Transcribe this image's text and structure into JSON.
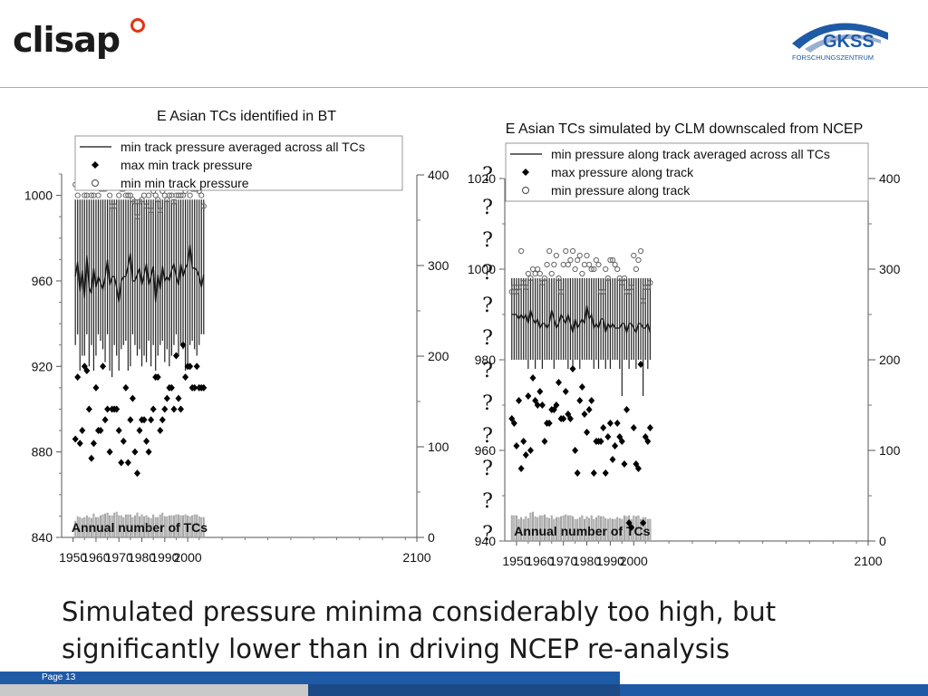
{
  "header": {
    "logo_left_text": "clisap",
    "logo_right_text": "GKSS",
    "logo_right_subtext": "FORSCHUNGSZENTRUM"
  },
  "caption": {
    "line1": "Simulated pressure minima considerably too high, but",
    "line2": "significantly lower than in driving NCEP re-analysis"
  },
  "footer": {
    "page_label": "Page 13"
  },
  "chart_data": [
    {
      "type": "box_scatter_bar",
      "title": "E Asian TCs identified in BT",
      "xlabel": "",
      "ylabel": "",
      "y2label": "",
      "xlim": [
        1945,
        2100
      ],
      "ylim": [
        840,
        1010
      ],
      "y2lim": [
        0,
        400
      ],
      "x_ticks": [
        1950,
        1960,
        1970,
        1980,
        1990,
        2000,
        2100
      ],
      "y_ticks": [
        840,
        880,
        920,
        960,
        1000
      ],
      "y2_ticks": [
        0,
        100,
        200,
        300,
        400
      ],
      "legend": [
        {
          "label": "min track pressure averaged across all TCs",
          "marker": "line"
        },
        {
          "label": "max min track pressure",
          "marker": "diamond"
        },
        {
          "label": "min min track pressure",
          "marker": "circle"
        }
      ],
      "bar_label": "Annual number of TCs",
      "years": [
        1951,
        1952,
        1953,
        1954,
        1955,
        1956,
        1957,
        1958,
        1959,
        1960,
        1961,
        1962,
        1963,
        1964,
        1965,
        1966,
        1967,
        1968,
        1969,
        1970,
        1971,
        1972,
        1973,
        1974,
        1975,
        1976,
        1977,
        1978,
        1979,
        1980,
        1981,
        1982,
        1983,
        1984,
        1985,
        1986,
        1987,
        1988,
        1989,
        1990,
        1991,
        1992,
        1993,
        1994,
        1995,
        1996,
        1997,
        1998,
        1999,
        2000,
        2001,
        2002,
        2003,
        2004,
        2005,
        2006,
        2007
      ],
      "avg": [
        962,
        969,
        955,
        965,
        952,
        972,
        957,
        954,
        966,
        957,
        962,
        959,
        956,
        962,
        970,
        958,
        962,
        962,
        957,
        950,
        960,
        962,
        962,
        967,
        973,
        960,
        960,
        963,
        966,
        958,
        963,
        968,
        958,
        962,
        967,
        950,
        963,
        956,
        967,
        960,
        962,
        960,
        965,
        968,
        962,
        958,
        968,
        962,
        966,
        968,
        977,
        966,
        966,
        965,
        962,
        957,
        963
      ],
      "whisker_max": [
        998,
        998,
        998,
        998,
        998,
        998,
        998,
        998,
        998,
        998,
        998,
        998,
        998,
        998,
        998,
        998,
        998,
        998,
        998,
        998,
        998,
        998,
        998,
        998,
        998,
        998,
        998,
        998,
        998,
        998,
        998,
        998,
        998,
        998,
        998,
        998,
        998,
        998,
        998,
        998,
        998,
        998,
        998,
        998,
        998,
        998,
        998,
        998,
        998,
        998,
        998,
        998,
        998,
        998,
        998,
        998,
        998
      ],
      "whisker_min": [
        930,
        935,
        918,
        925,
        925,
        935,
        920,
        930,
        918,
        925,
        935,
        932,
        928,
        922,
        935,
        918,
        915,
        930,
        925,
        918,
        928,
        930,
        932,
        918,
        920,
        935,
        930,
        925,
        928,
        920,
        925,
        922,
        932,
        920,
        930,
        918,
        925,
        930,
        932,
        922,
        928,
        920,
        925,
        930,
        935,
        925,
        930,
        928,
        918,
        920,
        930,
        932,
        928,
        925,
        930,
        935,
        935
      ],
      "max_points": [
        886,
        915,
        884,
        890,
        920,
        918,
        900,
        877,
        884,
        910,
        890,
        890,
        920,
        895,
        900,
        880,
        900,
        900,
        900,
        890,
        875,
        885,
        910,
        875,
        895,
        905,
        880,
        870,
        890,
        895,
        895,
        885,
        880,
        895,
        900,
        915,
        915,
        890,
        895,
        900,
        905,
        910,
        910,
        900,
        925,
        905,
        900,
        930,
        915,
        920,
        920,
        910,
        910,
        920,
        910,
        910,
        910
      ],
      "min_points": [
        1005,
        1000,
        1005,
        1005,
        1000,
        1000,
        1005,
        1000,
        1000,
        1008,
        1000,
        1003,
        1003,
        1003,
        1005,
        1000,
        995,
        995,
        1005,
        1000,
        1003,
        1003,
        1000,
        1000,
        1000,
        998,
        997,
        990,
        997,
        998,
        1000,
        995,
        1000,
        993,
        1002,
        1000,
        998,
        993,
        1002,
        1000,
        998,
        1000,
        1000,
        997,
        1000,
        1000,
        1000,
        1000,
        1002,
        1006,
        1000,
        1003,
        1003,
        1003,
        1002,
        1000,
        995
      ],
      "annual_counts": [
        18,
        23,
        22,
        21,
        22,
        24,
        22,
        21,
        26,
        22,
        22,
        24,
        25,
        26,
        27,
        24,
        24,
        27,
        28,
        24,
        24,
        22,
        25,
        25,
        25,
        22,
        24,
        27,
        23,
        25,
        23,
        24,
        22,
        21,
        25,
        22,
        22,
        25,
        27,
        23,
        23,
        24,
        24,
        24,
        25,
        25,
        24,
        24,
        25,
        24,
        23,
        24,
        25,
        25,
        23,
        22,
        22
      ]
    },
    {
      "type": "box_scatter_bar",
      "title": "E Asian TCs simulated by CLM downscaled from NCEP",
      "xlabel": "",
      "ylabel": "",
      "y2label": "",
      "xlim": [
        1945,
        2100
      ],
      "ylim": [
        940,
        1020
      ],
      "y2lim": [
        0,
        400
      ],
      "x_ticks": [
        1950,
        1960,
        1970,
        1980,
        1990,
        2000,
        2100
      ],
      "y_ticks": [
        940,
        960,
        980,
        1000,
        1020
      ],
      "y2_ticks": [
        0,
        100,
        200,
        300,
        400
      ],
      "legend": [
        {
          "label": "min pressure along track averaged across all TCs",
          "marker": "line"
        },
        {
          "label": "max pressure along track",
          "marker": "diamond"
        },
        {
          "label": "min pressure along track",
          "marker": "circle"
        }
      ],
      "bar_label": "Annual number of TCs",
      "overlay_marks": [
        "?",
        "?",
        "?",
        "?",
        "?",
        "?",
        "?",
        "?",
        "?",
        "?",
        "?",
        "?"
      ],
      "years": [
        1948,
        1949,
        1950,
        1951,
        1952,
        1953,
        1954,
        1955,
        1956,
        1957,
        1958,
        1959,
        1960,
        1961,
        1962,
        1963,
        1964,
        1965,
        1966,
        1967,
        1968,
        1969,
        1970,
        1971,
        1972,
        1973,
        1974,
        1975,
        1976,
        1977,
        1978,
        1979,
        1980,
        1981,
        1982,
        1983,
        1984,
        1985,
        1986,
        1987,
        1988,
        1989,
        1990,
        1991,
        1992,
        1993,
        1994,
        1995,
        1996,
        1997,
        1998,
        1999,
        2000,
        2001,
        2002,
        2003,
        2004,
        2005,
        2006,
        2007
      ],
      "avg": [
        990,
        990,
        990,
        989,
        990,
        989,
        990,
        988,
        991,
        989,
        988,
        989,
        987,
        988,
        988,
        987,
        988,
        991,
        989,
        987,
        988,
        990,
        989,
        988,
        990,
        988,
        986,
        989,
        987,
        988,
        989,
        988,
        992,
        989,
        990,
        987,
        988,
        987,
        989,
        989,
        986,
        988,
        987,
        988,
        987,
        987,
        987,
        988,
        988,
        986,
        988,
        988,
        987,
        986,
        988,
        988,
        987,
        987,
        988,
        986
      ],
      "whisker_max": [
        998,
        998,
        998,
        998,
        998,
        998,
        998,
        998,
        998,
        998,
        998,
        998,
        998,
        998,
        998,
        998,
        998,
        998,
        998,
        998,
        998,
        998,
        998,
        998,
        998,
        998,
        998,
        998,
        998,
        998,
        998,
        998,
        998,
        998,
        998,
        998,
        998,
        998,
        998,
        998,
        998,
        998,
        998,
        998,
        998,
        998,
        998,
        998,
        998,
        998,
        998,
        998,
        998,
        998,
        998,
        998,
        998,
        998,
        998,
        998
      ],
      "whisker_min": [
        980,
        980,
        980,
        980,
        980,
        980,
        980,
        978,
        980,
        980,
        978,
        980,
        980,
        978,
        980,
        980,
        980,
        980,
        978,
        980,
        980,
        980,
        980,
        980,
        978,
        980,
        978,
        980,
        980,
        978,
        980,
        980,
        980,
        980,
        980,
        978,
        980,
        978,
        980,
        980,
        978,
        980,
        978,
        980,
        980,
        980,
        978,
        972,
        980,
        980,
        978,
        980,
        980,
        978,
        980,
        980,
        972,
        980,
        978,
        980
      ],
      "max_points": [
        967,
        966,
        961,
        971,
        956,
        962,
        959,
        972,
        960,
        976,
        971,
        970,
        973,
        970,
        962,
        966,
        966,
        969,
        969,
        970,
        975,
        967,
        967,
        973,
        968,
        967,
        978,
        960,
        955,
        971,
        974,
        968,
        964,
        969,
        971,
        955,
        962,
        962,
        962,
        965,
        955,
        963,
        966,
        958,
        961,
        966,
        963,
        962,
        957,
        969,
        944,
        943,
        965,
        957,
        956,
        979,
        944,
        963,
        962,
        965
      ],
      "min_points": [
        995,
        996,
        995,
        996,
        1004,
        997,
        996,
        999,
        998,
        1000,
        999,
        1000,
        999,
        997,
        998,
        1001,
        1004,
        999,
        1001,
        1003,
        998,
        995,
        1001,
        1004,
        1001,
        1002,
        1004,
        1000,
        1002,
        1003,
        999,
        1001,
        1003,
        1001,
        1000,
        1000,
        1002,
        1001,
        995,
        995,
        1000,
        998,
        1002,
        1002,
        1001,
        1000,
        998,
        997,
        998,
        995,
        995,
        996,
        1003,
        1000,
        1002,
        1004,
        993,
        996,
        996,
        997
      ],
      "annual_counts": [
        28,
        28,
        28,
        24,
        26,
        24,
        27,
        25,
        31,
        32,
        27,
        26,
        28,
        28,
        29,
        26,
        25,
        28,
        24,
        26,
        26,
        27,
        28,
        29,
        28,
        28,
        27,
        24,
        24,
        26,
        28,
        24,
        27,
        25,
        28,
        24,
        26,
        28,
        27,
        27,
        25,
        24,
        25,
        24,
        24,
        26,
        25,
        24,
        28,
        27,
        28,
        24,
        28,
        27,
        28,
        24,
        26,
        26,
        24,
        24
      ]
    }
  ]
}
